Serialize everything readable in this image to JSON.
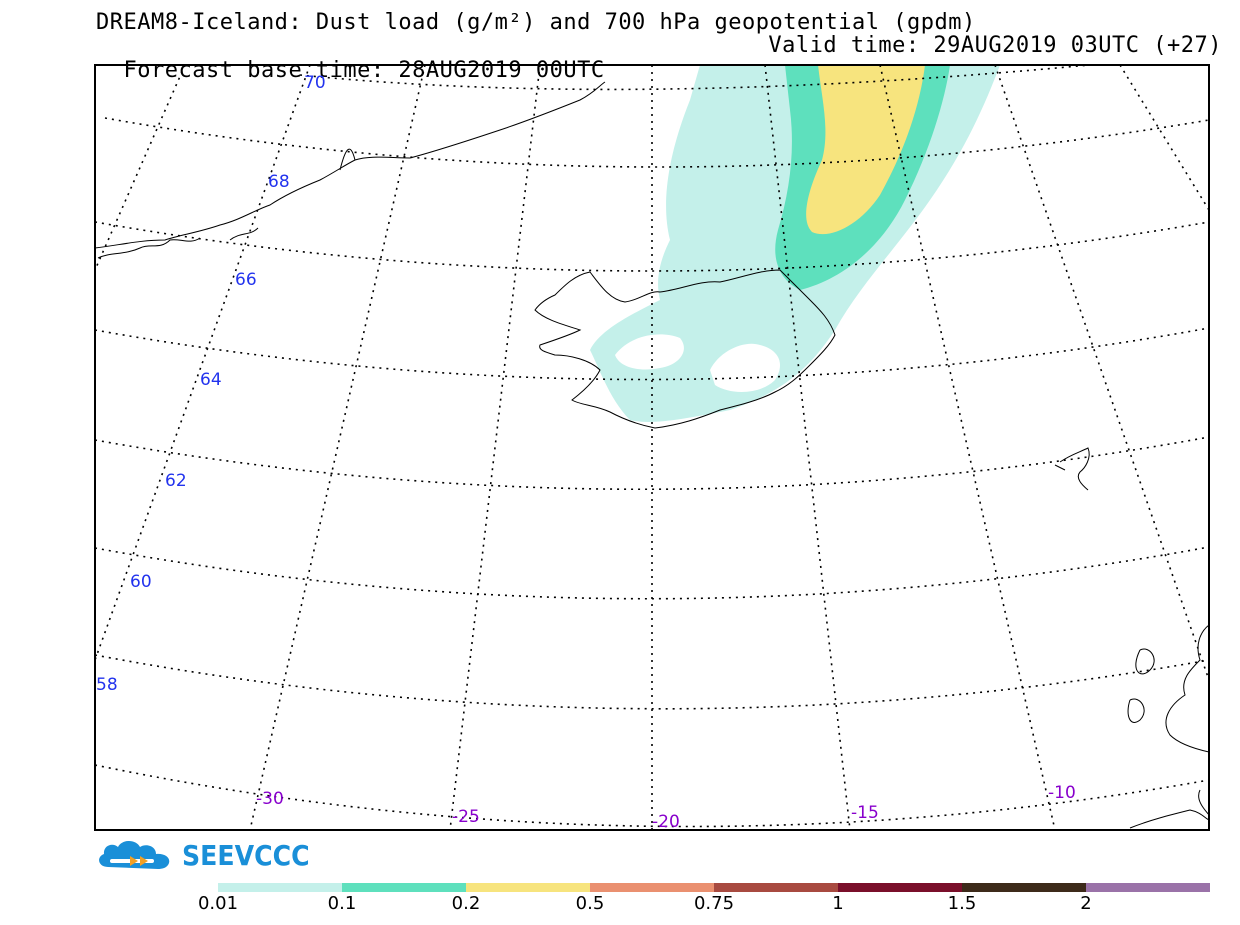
{
  "header": {
    "title_line1": "DREAM8-Iceland: Dust load (g/m²) and 700 hPa geopotential (gpdm)",
    "forecast_base": "Forecast base time: 28AUG2019 00UTC",
    "valid_time": "Valid time: 29AUG2019 03UTC (+27)"
  },
  "map": {
    "latitude_labels": [
      "70",
      "68",
      "66",
      "64",
      "62",
      "60",
      "58"
    ],
    "longitude_labels": [
      "-30",
      "-25",
      "-20",
      "-15",
      "-10"
    ],
    "colors": {
      "level_001": "#c4f0ea",
      "level_01": "#5ee0bd",
      "level_02": "#f7e47e",
      "lat_label": "#2233ee",
      "lon_label": "#8800cc"
    }
  },
  "logo": {
    "text": "SEEVCCC",
    "icon": "cloud-logo-icon",
    "color": "#1a8fd8"
  },
  "colorbar": {
    "colors": [
      "#c4f0ea",
      "#5ee0bd",
      "#f7e47e",
      "#ea9070",
      "#a84a40",
      "#7a0f2a",
      "#3d2a1a",
      "#9a72a8"
    ],
    "labels": [
      "0.01",
      "0.1",
      "0.2",
      "0.5",
      "0.75",
      "1",
      "1.5",
      "2"
    ]
  }
}
